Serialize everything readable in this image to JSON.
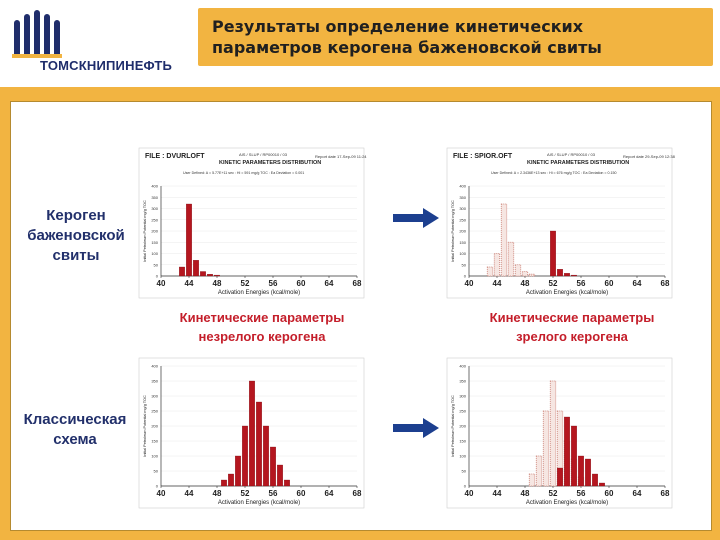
{
  "header": {
    "logo_text": "ТОМСКНИПИНЕФТЬ",
    "title_line1": "Результаты определение кинетических",
    "title_line2": "параметров керогена баженовской свиты"
  },
  "left_labels": {
    "kerogen": [
      "Кероген",
      "баженовской",
      "свиты"
    ],
    "classic": [
      "Классическая",
      "схема"
    ]
  },
  "captions": {
    "immature": [
      "Кинетические параметры",
      "незрелого керогена"
    ],
    "mature": [
      "Кинетические параметры",
      "зрелого керогена"
    ]
  },
  "chart_data": [
    {
      "id": "top-left",
      "type": "bar",
      "file": "FILE : DVURLOFT",
      "title": "KINETIC PARAMETERS DISTRIBUTION",
      "header_small": "AIS / SLUP / RP00010 / 03",
      "info": "User Defined: A = 5.77E+11 sec : Hi = 591 mg/g TOC : Ea Deviation = 0.001",
      "date": "Report date 17-Sep-09 11:24",
      "xlabel": "Activation Energies (kcal/mole)",
      "ylabel": "Initial Petroleum Potential mg/g TOC",
      "xlim": [
        40,
        68
      ],
      "ylim": [
        0,
        400
      ],
      "xticks": [
        40,
        44,
        48,
        52,
        56,
        60,
        64,
        68
      ],
      "yticks": [
        0,
        50,
        100,
        150,
        200,
        250,
        300,
        350,
        400
      ],
      "series": [
        {
          "style": "solid",
          "x": [
            43,
            44,
            45,
            46,
            47,
            48
          ],
          "values": [
            40,
            320,
            70,
            20,
            8,
            4
          ]
        }
      ]
    },
    {
      "id": "top-right",
      "type": "bar",
      "file": "FILE : SPIOR.OFT",
      "title": "KINETIC PARAMETERS DISTRIBUTION",
      "header_small": "AIS / SLUP / RP00010 / 03",
      "info": "User Defined: A = 2.3436E+13 sec : Hi = 676 mg/g TOC : Ea Deviation = 0.150",
      "date": "Report date 29-Sep-09 12:38",
      "xlabel": "Activation Energies (kcal/mole)",
      "ylabel": "Initial Petroleum Potential mg/g TOC",
      "xlim": [
        40,
        68
      ],
      "ylim": [
        0,
        400
      ],
      "xticks": [
        40,
        44,
        48,
        52,
        56,
        60,
        64,
        68
      ],
      "yticks": [
        0,
        50,
        100,
        150,
        200,
        250,
        300,
        350,
        400
      ],
      "series": [
        {
          "style": "dotted",
          "x": [
            43,
            44,
            45,
            46,
            47,
            48,
            49
          ],
          "values": [
            40,
            100,
            320,
            150,
            50,
            20,
            8
          ]
        },
        {
          "style": "solid",
          "x": [
            52,
            53,
            54,
            55
          ],
          "values": [
            200,
            30,
            12,
            4
          ]
        }
      ]
    },
    {
      "id": "bottom-left",
      "type": "bar",
      "xlabel": "Activation Energies (kcal/mole)",
      "ylabel": "Initial Petroleum Potential mg/g TOC",
      "xlim": [
        40,
        68
      ],
      "ylim": [
        0,
        400
      ],
      "xticks": [
        40,
        44,
        48,
        52,
        56,
        60,
        64,
        68
      ],
      "yticks": [
        0,
        50,
        100,
        150,
        200,
        250,
        300,
        350,
        400
      ],
      "series": [
        {
          "style": "solid",
          "x": [
            49,
            50,
            51,
            52,
            53,
            54,
            55,
            56,
            57,
            58
          ],
          "values": [
            20,
            40,
            100,
            200,
            350,
            280,
            200,
            130,
            70,
            20
          ]
        }
      ]
    },
    {
      "id": "bottom-right",
      "type": "bar",
      "xlabel": "Activation Energies (kcal/mole)",
      "ylabel": "Initial Petroleum Potential mg/g TOC",
      "xlim": [
        40,
        68
      ],
      "ylim": [
        0,
        400
      ],
      "xticks": [
        40,
        44,
        48,
        52,
        56,
        60,
        64,
        68
      ],
      "yticks": [
        0,
        50,
        100,
        150,
        200,
        250,
        300,
        350,
        400
      ],
      "series": [
        {
          "style": "dotted",
          "x": [
            49,
            50,
            51,
            52,
            53,
            54,
            55,
            56
          ],
          "values": [
            40,
            100,
            250,
            350,
            250,
            150,
            90,
            30
          ]
        },
        {
          "style": "solid",
          "x": [
            53,
            54,
            55,
            56,
            57,
            58,
            59
          ],
          "values": [
            60,
            230,
            200,
            100,
            90,
            40,
            10
          ]
        }
      ]
    }
  ],
  "colors": {
    "accent": "#f2b441",
    "bar_solid": "#b5161f",
    "bar_dotted": "#c77a6e",
    "arrow": "#1c3f8f",
    "navy": "#22306b",
    "red_text": "#c41e2a"
  }
}
